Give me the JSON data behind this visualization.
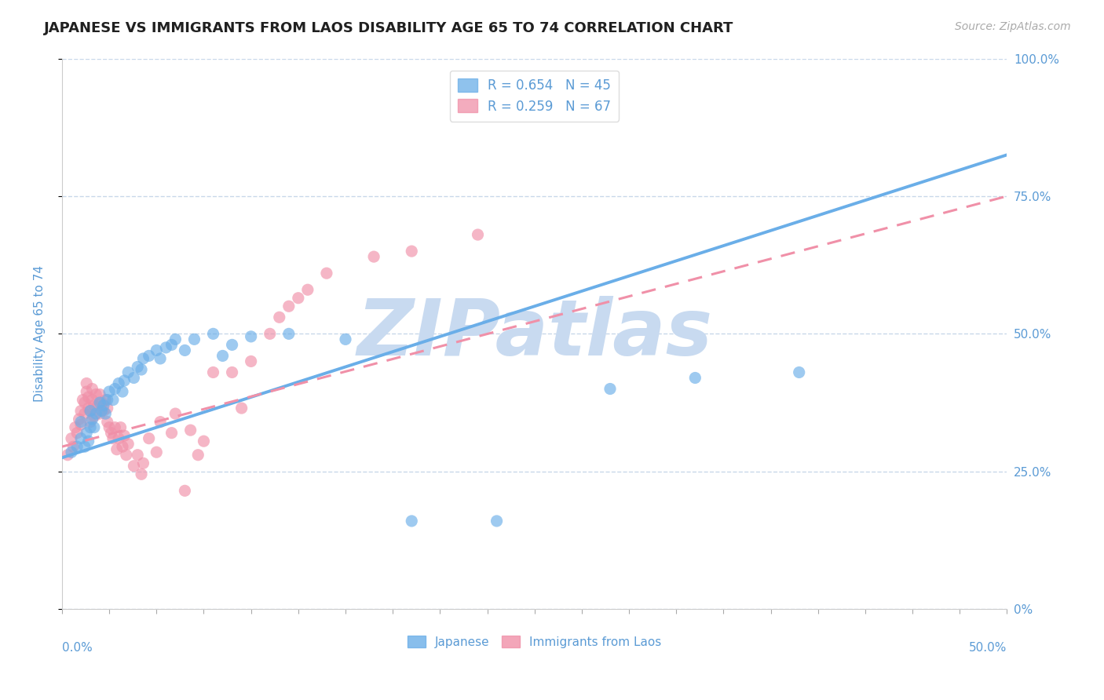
{
  "title": "JAPANESE VS IMMIGRANTS FROM LAOS DISABILITY AGE 65 TO 74 CORRELATION CHART",
  "source": "Source: ZipAtlas.com",
  "ylabel": "Disability Age 65 to 74",
  "blue_color": "#6aaee8",
  "pink_color": "#f090a8",
  "blue_scatter": [
    [
      0.005,
      0.285
    ],
    [
      0.008,
      0.295
    ],
    [
      0.01,
      0.31
    ],
    [
      0.01,
      0.34
    ],
    [
      0.012,
      0.295
    ],
    [
      0.013,
      0.32
    ],
    [
      0.014,
      0.305
    ],
    [
      0.015,
      0.33
    ],
    [
      0.015,
      0.36
    ],
    [
      0.016,
      0.345
    ],
    [
      0.017,
      0.33
    ],
    [
      0.018,
      0.355
    ],
    [
      0.02,
      0.375
    ],
    [
      0.021,
      0.36
    ],
    [
      0.022,
      0.37
    ],
    [
      0.023,
      0.355
    ],
    [
      0.024,
      0.38
    ],
    [
      0.025,
      0.395
    ],
    [
      0.027,
      0.38
    ],
    [
      0.028,
      0.4
    ],
    [
      0.03,
      0.41
    ],
    [
      0.032,
      0.395
    ],
    [
      0.033,
      0.415
    ],
    [
      0.035,
      0.43
    ],
    [
      0.038,
      0.42
    ],
    [
      0.04,
      0.44
    ],
    [
      0.042,
      0.435
    ],
    [
      0.043,
      0.455
    ],
    [
      0.046,
      0.46
    ],
    [
      0.05,
      0.47
    ],
    [
      0.052,
      0.455
    ],
    [
      0.055,
      0.475
    ],
    [
      0.058,
      0.48
    ],
    [
      0.06,
      0.49
    ],
    [
      0.065,
      0.47
    ],
    [
      0.07,
      0.49
    ],
    [
      0.08,
      0.5
    ],
    [
      0.085,
      0.46
    ],
    [
      0.09,
      0.48
    ],
    [
      0.1,
      0.495
    ],
    [
      0.12,
      0.5
    ],
    [
      0.15,
      0.49
    ],
    [
      0.185,
      0.16
    ],
    [
      0.23,
      0.16
    ],
    [
      0.29,
      0.4
    ],
    [
      0.335,
      0.42
    ],
    [
      0.39,
      0.43
    ]
  ],
  "pink_scatter": [
    [
      0.003,
      0.28
    ],
    [
      0.005,
      0.31
    ],
    [
      0.006,
      0.295
    ],
    [
      0.007,
      0.33
    ],
    [
      0.008,
      0.32
    ],
    [
      0.009,
      0.345
    ],
    [
      0.01,
      0.335
    ],
    [
      0.01,
      0.36
    ],
    [
      0.011,
      0.38
    ],
    [
      0.012,
      0.355
    ],
    [
      0.012,
      0.375
    ],
    [
      0.013,
      0.395
    ],
    [
      0.013,
      0.41
    ],
    [
      0.014,
      0.365
    ],
    [
      0.014,
      0.385
    ],
    [
      0.015,
      0.34
    ],
    [
      0.015,
      0.36
    ],
    [
      0.016,
      0.38
    ],
    [
      0.016,
      0.4
    ],
    [
      0.017,
      0.35
    ],
    [
      0.017,
      0.37
    ],
    [
      0.018,
      0.39
    ],
    [
      0.019,
      0.37
    ],
    [
      0.02,
      0.39
    ],
    [
      0.02,
      0.355
    ],
    [
      0.021,
      0.375
    ],
    [
      0.022,
      0.36
    ],
    [
      0.023,
      0.38
    ],
    [
      0.024,
      0.34
    ],
    [
      0.024,
      0.365
    ],
    [
      0.025,
      0.33
    ],
    [
      0.026,
      0.32
    ],
    [
      0.027,
      0.31
    ],
    [
      0.028,
      0.33
    ],
    [
      0.029,
      0.29
    ],
    [
      0.03,
      0.31
    ],
    [
      0.031,
      0.33
    ],
    [
      0.032,
      0.295
    ],
    [
      0.033,
      0.315
    ],
    [
      0.034,
      0.28
    ],
    [
      0.035,
      0.3
    ],
    [
      0.038,
      0.26
    ],
    [
      0.04,
      0.28
    ],
    [
      0.042,
      0.245
    ],
    [
      0.043,
      0.265
    ],
    [
      0.046,
      0.31
    ],
    [
      0.05,
      0.285
    ],
    [
      0.052,
      0.34
    ],
    [
      0.058,
      0.32
    ],
    [
      0.06,
      0.355
    ],
    [
      0.065,
      0.215
    ],
    [
      0.068,
      0.325
    ],
    [
      0.072,
      0.28
    ],
    [
      0.075,
      0.305
    ],
    [
      0.08,
      0.43
    ],
    [
      0.09,
      0.43
    ],
    [
      0.095,
      0.365
    ],
    [
      0.1,
      0.45
    ],
    [
      0.11,
      0.5
    ],
    [
      0.115,
      0.53
    ],
    [
      0.12,
      0.55
    ],
    [
      0.125,
      0.565
    ],
    [
      0.13,
      0.58
    ],
    [
      0.14,
      0.61
    ],
    [
      0.165,
      0.64
    ],
    [
      0.185,
      0.65
    ],
    [
      0.22,
      0.68
    ]
  ],
  "blue_line_x": [
    0.0,
    0.5
  ],
  "blue_line_y": [
    0.275,
    0.825
  ],
  "pink_line_x": [
    0.0,
    0.5
  ],
  "pink_line_y": [
    0.295,
    0.75
  ],
  "ytick_values": [
    0.0,
    0.25,
    0.5,
    0.75,
    1.0
  ],
  "ytick_labels": [
    "0%",
    "25.0%",
    "50.0%",
    "75.0%",
    "100.0%"
  ],
  "xmin": 0.0,
  "xmax": 0.5,
  "ymin": 0.0,
  "ymax": 1.0,
  "watermark": "ZIPatlas",
  "watermark_color": "#c8daf0",
  "background_color": "#ffffff",
  "grid_color": "#c8d8ea",
  "title_color": "#202020",
  "axis_label_color": "#5b9bd5",
  "tick_color": "#5b9bd5",
  "source_color": "#aaaaaa"
}
